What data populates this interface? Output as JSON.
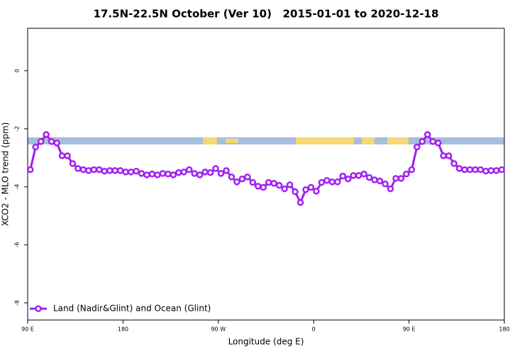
{
  "chart_data": {
    "type": "line",
    "title": "17.5N-22.5N October (Ver 10)   2015-01-01 to 2020-12-18",
    "x_label": "Longitude (deg E)",
    "y_label": "XCO2 - MLO trend (ppm)",
    "xlim": [
      90,
      540
    ],
    "xticks": [
      {
        "value": 90,
        "label": "90 E"
      },
      {
        "value": 180,
        "label": "180"
      },
      {
        "value": 270,
        "label": "90 W"
      },
      {
        "value": 360,
        "label": "0"
      },
      {
        "value": 450,
        "label": "90 E"
      },
      {
        "value": 540,
        "label": "180"
      }
    ],
    "ylim": [
      -8.59,
      1.46
    ],
    "yticks": [
      0,
      -2,
      -4,
      -6,
      -8
    ],
    "legend": "bottom-left",
    "x": [
      92.5,
      97.5,
      102.5,
      107.5,
      112.5,
      117.5,
      122.5,
      127.5,
      132.5,
      137.5,
      142.5,
      147.5,
      152.5,
      157.5,
      162.5,
      167.5,
      172.5,
      177.5,
      182.5,
      187.5,
      192.5,
      197.5,
      202.5,
      207.5,
      212.5,
      217.5,
      222.5,
      227.5,
      232.5,
      237.5,
      242.5,
      247.5,
      252.5,
      257.5,
      262.5,
      267.5,
      272.5,
      277.5,
      282.5,
      287.5,
      292.5,
      297.5,
      302.5,
      307.5,
      312.5,
      317.5,
      322.5,
      327.5,
      332.5,
      337.5,
      342.5,
      347.5,
      352.5,
      357.5,
      362.5,
      367.5,
      372.5,
      377.5,
      382.5,
      387.5,
      392.5,
      397.5,
      402.5,
      407.5,
      412.5,
      417.5,
      422.5,
      427.5,
      432.5,
      437.5,
      442.5,
      447.5,
      452.5,
      457.5,
      462.5,
      467.5,
      472.5,
      477.5,
      482.5,
      487.5,
      492.5,
      497.5,
      502.5,
      507.5,
      512.5,
      517.5,
      522.5,
      527.5,
      532.5,
      537.5
    ],
    "series": [
      {
        "name": "Land (Nadir&Glint) and Ocean (Glint)",
        "color": "#a020f0",
        "values": [
          -3.41,
          -2.63,
          -2.44,
          -2.2,
          -2.44,
          -2.49,
          -2.93,
          -2.93,
          -3.2,
          -3.37,
          -3.41,
          -3.44,
          -3.41,
          -3.41,
          -3.46,
          -3.44,
          -3.44,
          -3.44,
          -3.49,
          -3.49,
          -3.46,
          -3.54,
          -3.59,
          -3.56,
          -3.59,
          -3.54,
          -3.56,
          -3.59,
          -3.51,
          -3.49,
          -3.41,
          -3.54,
          -3.59,
          -3.49,
          -3.51,
          -3.37,
          -3.54,
          -3.44,
          -3.66,
          -3.83,
          -3.73,
          -3.66,
          -3.85,
          -3.98,
          -4.02,
          -3.85,
          -3.88,
          -3.95,
          -4.07,
          -3.93,
          -4.17,
          -4.54,
          -4.1,
          -4.02,
          -4.15,
          -3.85,
          -3.78,
          -3.83,
          -3.83,
          -3.63,
          -3.73,
          -3.61,
          -3.61,
          -3.56,
          -3.68,
          -3.76,
          -3.8,
          -3.9,
          -4.07,
          -3.71,
          -3.71,
          -3.56,
          -3.41,
          -2.63,
          -2.44,
          -2.2,
          -2.44,
          -2.49,
          -2.93,
          -2.93,
          -3.2,
          -3.37,
          -3.41,
          -3.41,
          -3.41,
          -3.41,
          -3.46,
          -3.44,
          -3.44,
          -3.41
        ]
      }
    ]
  }
}
